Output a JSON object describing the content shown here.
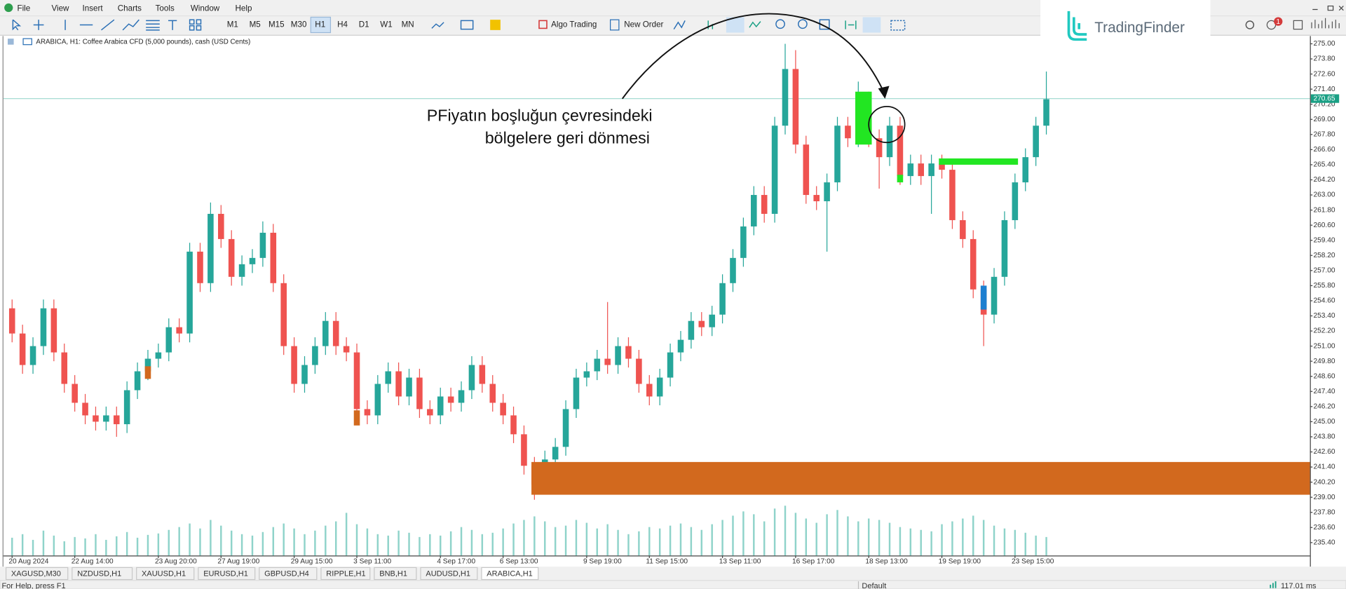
{
  "menu": [
    "File",
    "View",
    "Insert",
    "Charts",
    "Tools",
    "Window",
    "Help"
  ],
  "toolbar": {
    "timeframes": [
      "M1",
      "M5",
      "M15",
      "M30",
      "H1",
      "H4",
      "D1",
      "W1",
      "MN"
    ],
    "algo_trading": "Algo Trading",
    "new_order": "New Order",
    "notifications": 1
  },
  "logo": "TradingFinder",
  "chart_data": {
    "type": "candlestick",
    "title": "ARABICA, H1:  Coffee Arabica CFD (5,000 pounds), cash (USD Cents)",
    "annotation": [
      "PFiyatın boşluğun çevresindeki",
      "bölgelere geri dönmesi"
    ],
    "up_color": "#26a69a",
    "down_color": "#ef5350",
    "volume_color": "#8fd3ca",
    "grid": false,
    "ylim": [
      233.83,
      275.41
    ],
    "yticks": [
      {
        "value": 235.4,
        "label": "235.40"
      },
      {
        "value": 236.6,
        "label": "236.60"
      },
      {
        "value": 237.8,
        "label": "237.80"
      },
      {
        "value": 239,
        "label": "239.00"
      },
      {
        "value": 240.2,
        "label": "240.20"
      },
      {
        "value": 241.4,
        "label": "241.40"
      },
      {
        "value": 242.6,
        "label": "242.60"
      },
      {
        "value": 243.8,
        "label": "243.80"
      },
      {
        "value": 245,
        "label": "245.00"
      },
      {
        "value": 246.2,
        "label": "246.20"
      },
      {
        "value": 247.4,
        "label": "247.40"
      },
      {
        "value": 248.6,
        "label": "248.60"
      },
      {
        "value": 249.8,
        "label": "249.80"
      },
      {
        "value": 251,
        "label": "251.00"
      },
      {
        "value": 252.2,
        "label": "252.20"
      },
      {
        "value": 253.4,
        "label": "253.40"
      },
      {
        "value": 254.6,
        "label": "254.60"
      },
      {
        "value": 255.8,
        "label": "255.80"
      },
      {
        "value": 257,
        "label": "257.00"
      },
      {
        "value": 258.2,
        "label": "258.20"
      },
      {
        "value": 259.4,
        "label": "259.40"
      },
      {
        "value": 260.6,
        "label": "260.60"
      },
      {
        "value": 261.8,
        "label": "261.80"
      },
      {
        "value": 263,
        "label": "263.00"
      },
      {
        "value": 264.2,
        "label": "264.20"
      },
      {
        "value": 265.4,
        "label": "265.40"
      },
      {
        "value": 266.6,
        "label": "266.60"
      },
      {
        "value": 267.8,
        "label": "267.80"
      },
      {
        "value": 269,
        "label": "269.00"
      },
      {
        "value": 270.2,
        "label": "270.20"
      },
      {
        "value": 271.4,
        "label": "271.40"
      },
      {
        "value": 272.6,
        "label": "272.60"
      },
      {
        "value": 273.8,
        "label": "273.80"
      },
      {
        "value": 275,
        "label": "275.00"
      }
    ],
    "current_price": 270.65,
    "current_price_color": "#1aa085",
    "categories": [
      "20 Aug 2024",
      null,
      null,
      null,
      null,
      null,
      "22 Aug 14:00",
      null,
      null,
      null,
      null,
      null,
      null,
      null,
      "23 Aug 20:00",
      null,
      null,
      null,
      null,
      null,
      "27 Aug 19:00",
      null,
      null,
      null,
      null,
      null,
      null,
      "29 Aug 15:00",
      null,
      null,
      null,
      null,
      null,
      "3 Sep 11:00",
      null,
      null,
      null,
      null,
      null,
      null,
      null,
      "4 Sep 17:00",
      null,
      null,
      null,
      null,
      null,
      "6 Sep 13:00",
      null,
      null,
      null,
      null,
      null,
      null,
      null,
      "9 Sep 19:00",
      null,
      null,
      null,
      null,
      null,
      "11 Sep 15:00",
      null,
      null,
      null,
      null,
      null,
      null,
      "13 Sep 11:00",
      null,
      null,
      null,
      null,
      null,
      null,
      "16 Sep 17:00",
      null,
      null,
      null,
      null,
      null,
      null,
      "18 Sep 13:00",
      null,
      null,
      null,
      null,
      null,
      null,
      "19 Sep 19:00",
      null,
      null,
      null,
      null,
      null,
      null,
      "23 Sep 15:00",
      null,
      null,
      null
    ],
    "open": [
      254,
      252,
      249.5,
      251,
      254,
      250.5,
      248,
      246.5,
      245.5,
      245,
      245.5,
      244.8,
      247.5,
      249,
      250,
      250.5,
      252.5,
      252,
      258.5,
      256,
      261.5,
      259.5,
      256.5,
      257.5,
      258,
      260,
      256,
      251,
      248,
      249.5,
      251,
      253,
      251,
      250.5,
      246,
      245.5,
      248,
      249,
      247,
      248.5,
      246,
      245.5,
      247,
      246.5,
      247.5,
      249.5,
      248,
      246.5,
      245.5,
      244,
      241.5,
      240,
      242,
      243,
      246,
      248.5,
      249,
      250,
      249.5,
      251,
      250,
      248,
      247,
      248.5,
      250.5,
      251.5,
      253,
      252.5,
      253.5,
      256,
      258,
      260.5,
      263,
      261.5,
      268.5,
      273,
      267,
      263,
      262.5,
      264,
      268.5,
      267.5,
      270.5,
      267.5,
      266,
      268.5,
      264.5,
      265.5,
      264.5,
      265.5,
      265,
      261,
      259.5,
      255.5,
      253.5,
      256.5,
      261,
      264,
      266,
      268.5
    ],
    "high": [
      254.7,
      252.7,
      251.7,
      254.7,
      254.7,
      251.2,
      248.7,
      247.2,
      246.2,
      246.2,
      246.2,
      248.2,
      249.7,
      250.7,
      251.2,
      253.2,
      253.2,
      259.2,
      259.2,
      262.4,
      262.2,
      260.2,
      258.2,
      258.7,
      260.9,
      260.7,
      256.7,
      251.7,
      250.2,
      251.7,
      253.7,
      253.7,
      251.7,
      251.2,
      246.7,
      248.7,
      249.7,
      249.7,
      249.2,
      249.2,
      246.7,
      247.7,
      247.7,
      248.2,
      250.2,
      250.2,
      248.7,
      247.2,
      246.2,
      244.7,
      242.2,
      242.7,
      243.7,
      246.7,
      249.2,
      249.7,
      250.7,
      254.5,
      251.7,
      251.7,
      250.7,
      248.7,
      249.2,
      251.2,
      252.2,
      253.7,
      253.7,
      254.2,
      256.7,
      258.7,
      261.2,
      263.7,
      263.7,
      269.2,
      275,
      274.5,
      267.7,
      263.7,
      264.7,
      269.2,
      269.2,
      272,
      271.2,
      268.2,
      269.2,
      269.2,
      266.2,
      266.2,
      266.2,
      266.2,
      265.7,
      261.7,
      260.2,
      256.2,
      257.2,
      261.7,
      264.7,
      266.7,
      269.2,
      272.8
    ],
    "low": [
      251.3,
      248.8,
      248.8,
      250.3,
      249.8,
      247.3,
      245.8,
      244.8,
      244.3,
      244.3,
      243.8,
      244.1,
      246.8,
      248.3,
      249.3,
      249.8,
      251.3,
      251.3,
      255.3,
      255.3,
      258.8,
      255.8,
      255.8,
      256.8,
      257.3,
      255.3,
      250.3,
      247.3,
      247.3,
      248.8,
      250.3,
      250.3,
      249.8,
      245.3,
      244.8,
      244.8,
      247.3,
      246.3,
      246.3,
      245.3,
      244.8,
      244.8,
      245.8,
      245.8,
      246.8,
      247.3,
      245.8,
      244.8,
      243.3,
      240.8,
      238.8,
      239.3,
      241.3,
      242.3,
      245.3,
      247.8,
      248.3,
      248.8,
      248.8,
      249.3,
      247.3,
      246.3,
      246.3,
      247.8,
      249.8,
      250.8,
      251.8,
      251.8,
      252.8,
      255.3,
      257.3,
      259.8,
      260.8,
      260.8,
      267.8,
      266.3,
      262.3,
      261.8,
      258.5,
      263.3,
      266.8,
      266.8,
      266.8,
      263.5,
      265.3,
      263.8,
      263.8,
      263.8,
      261.5,
      264.3,
      260.3,
      258.8,
      254.8,
      251,
      252.8,
      255.8,
      260.3,
      263.3,
      265.3,
      267.8
    ],
    "close": [
      252,
      249.5,
      251,
      254,
      250.5,
      248,
      246.5,
      245.5,
      245,
      245.5,
      244.8,
      247.5,
      249,
      250,
      250.5,
      252.5,
      252,
      258.5,
      256,
      261.5,
      259.5,
      256.5,
      257.5,
      258,
      260,
      256,
      251,
      248,
      249.5,
      251,
      253,
      251,
      250.5,
      246,
      245.5,
      248,
      249,
      247,
      248.5,
      246,
      245.5,
      247,
      246.5,
      247.5,
      249.5,
      248,
      246.5,
      245.5,
      244,
      241.5,
      240,
      242,
      243,
      246,
      248.5,
      249,
      250,
      249.5,
      251,
      250,
      248,
      247,
      248.5,
      250.5,
      251.5,
      253,
      252.5,
      253.5,
      256,
      258,
      260.5,
      263,
      261.5,
      268.5,
      273,
      267,
      263,
      262.5,
      264,
      268.5,
      267.5,
      270.5,
      267.5,
      266,
      268.5,
      264.5,
      265.5,
      264.5,
      265.5,
      265,
      261,
      259.5,
      255.5,
      253.5,
      256.5,
      261,
      264,
      266,
      268.5,
      270.6
    ],
    "volume": [
      25,
      30,
      22,
      35,
      28,
      20,
      26,
      24,
      30,
      22,
      27,
      33,
      25,
      29,
      31,
      36,
      40,
      45,
      38,
      50,
      42,
      35,
      30,
      28,
      33,
      40,
      45,
      38,
      30,
      35,
      42,
      48,
      60,
      44,
      38,
      30,
      28,
      35,
      32,
      26,
      30,
      28,
      34,
      40,
      36,
      30,
      32,
      38,
      45,
      50,
      55,
      48,
      40,
      42,
      50,
      46,
      38,
      44,
      36,
      30,
      34,
      40,
      38,
      42,
      45,
      40,
      36,
      44,
      50,
      56,
      62,
      58,
      48,
      66,
      70,
      60,
      52,
      46,
      58,
      64,
      55,
      48,
      52,
      50,
      46,
      40,
      38,
      36,
      34,
      44,
      48,
      52,
      56,
      50,
      42,
      38,
      36,
      32,
      28,
      26
    ],
    "zones": [
      {
        "from": 50,
        "low": 239.2,
        "high": 241.8,
        "color": "#d2691e"
      },
      {
        "from": 81,
        "to": 82,
        "low": 267.0,
        "high": 271.2,
        "color": "#22e622"
      },
      {
        "from": 85,
        "to": 85,
        "low": 264.0,
        "high": 264.6,
        "color": "#22e622"
      },
      {
        "from": 89,
        "to": 96,
        "low": 265.4,
        "high": 265.9,
        "color": "#22e622"
      },
      {
        "from": 13,
        "to": 13,
        "low": 248.4,
        "high": 249.4,
        "color": "#d2691e"
      },
      {
        "from": 33,
        "to": 33,
        "low": 244.7,
        "high": 245.9,
        "color": "#d2691e"
      },
      {
        "from": 93,
        "to": 93,
        "low": 253.9,
        "high": 255.8,
        "color": "#1e7fd0"
      }
    ]
  },
  "tabs": [
    "XAGUSD,M30",
    "NZDUSD,H1",
    "XAUUSD,H1",
    "EURUSD,H1",
    "GBPUSD,H4",
    "RIPPLE,H1",
    "BNB,H1",
    "AUDUSD,H1",
    "ARABICA,H1"
  ],
  "status": {
    "help": "For Help, press F1",
    "profile": "Default",
    "ping": "117.01 ms"
  }
}
